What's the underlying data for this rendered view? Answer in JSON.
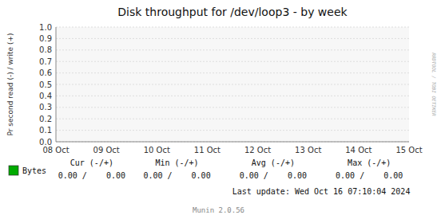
{
  "chart_data": {
    "type": "line",
    "title": "Disk throughput for /dev/loop3 - by week",
    "y_label": "Pr second read (-) / write (+)",
    "categories": [
      "08 Oct",
      "09 Oct",
      "10 Oct",
      "11 Oct",
      "12 Oct",
      "13 Oct",
      "14 Oct",
      "15 Oct"
    ],
    "series": [
      {
        "name": "Bytes",
        "color": "#00aa00",
        "values": [
          null,
          null,
          null,
          null,
          null,
          null,
          null,
          null
        ]
      }
    ],
    "ylim": [
      0.0,
      1.0
    ],
    "yticks": [
      {
        "value": 0,
        "label": "0.0"
      },
      0.1,
      0.2,
      0.3,
      0.4,
      0.5,
      0.6,
      0.7,
      0.8,
      0.9,
      {
        "value": 1,
        "label": "1.0"
      }
    ],
    "grid": true,
    "annotations": [
      "RRDTOOL / TOBI OETIKER",
      "Cur (-/+)",
      "Min (-/+)",
      "Avg (-/+)",
      "Max (-/+)",
      "0.00 /    0.00",
      "0.00 /    0.00",
      "0.00 /    0.00",
      "0.00 /    0.00",
      "Last update: Wed Oct 16 07:10:04 2024",
      "Munin 2.0.56"
    ]
  }
}
